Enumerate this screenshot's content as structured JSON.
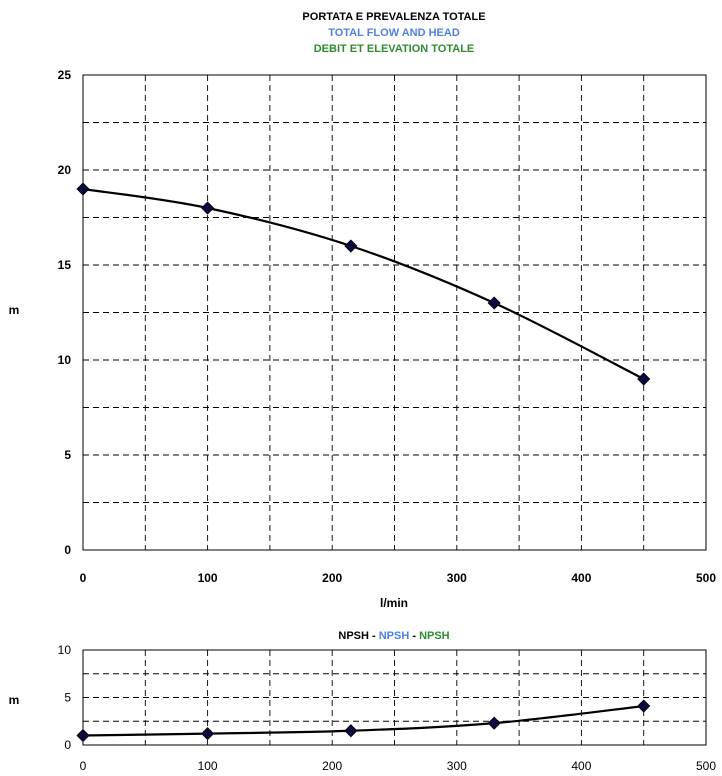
{
  "colors": {
    "black": "#000000",
    "blue": "#4f7fe8",
    "green": "#2e8b2e",
    "line": "#000000",
    "marker": "#0a0a40"
  },
  "chart_data": [
    {
      "type": "line",
      "title_lines": [
        {
          "text": "PORTATA E PREVALENZA TOTALE",
          "color": "#000000"
        },
        {
          "text": "TOTAL FLOW AND HEAD",
          "color": "#4f7fe8"
        },
        {
          "text": "DEBIT ET ELEVATION TOTALE",
          "color": "#2e8b2e"
        }
      ],
      "xlabel": "l/min",
      "ylabel": "m",
      "xlim": [
        0,
        500
      ],
      "ylim": [
        0,
        25
      ],
      "x_ticks": [
        0,
        100,
        200,
        300,
        400,
        500
      ],
      "y_ticks": [
        0,
        5,
        10,
        15,
        20,
        25
      ],
      "grid": true,
      "series": [
        {
          "x": [
            0,
            100,
            215,
            330,
            450
          ],
          "y": [
            19,
            18,
            16,
            13,
            9
          ]
        }
      ]
    },
    {
      "type": "line",
      "title_parts": [
        {
          "text": "NPSH",
          "color": "#000000"
        },
        {
          "text": " - ",
          "color": "#000000"
        },
        {
          "text": "NPSH",
          "color": "#4f7fe8"
        },
        {
          "text": " - ",
          "color": "#000000"
        },
        {
          "text": "NPSH",
          "color": "#2e8b2e"
        }
      ],
      "xlabel": "",
      "ylabel": "m",
      "xlim": [
        0,
        500
      ],
      "ylim": [
        0,
        10
      ],
      "x_ticks": [
        0,
        100,
        200,
        300,
        400,
        500
      ],
      "y_ticks": [
        0,
        5,
        10
      ],
      "grid": true,
      "series": [
        {
          "x": [
            0,
            100,
            215,
            330,
            450
          ],
          "y": [
            1,
            1.2,
            1.5,
            2.3,
            4.1
          ]
        }
      ]
    }
  ]
}
